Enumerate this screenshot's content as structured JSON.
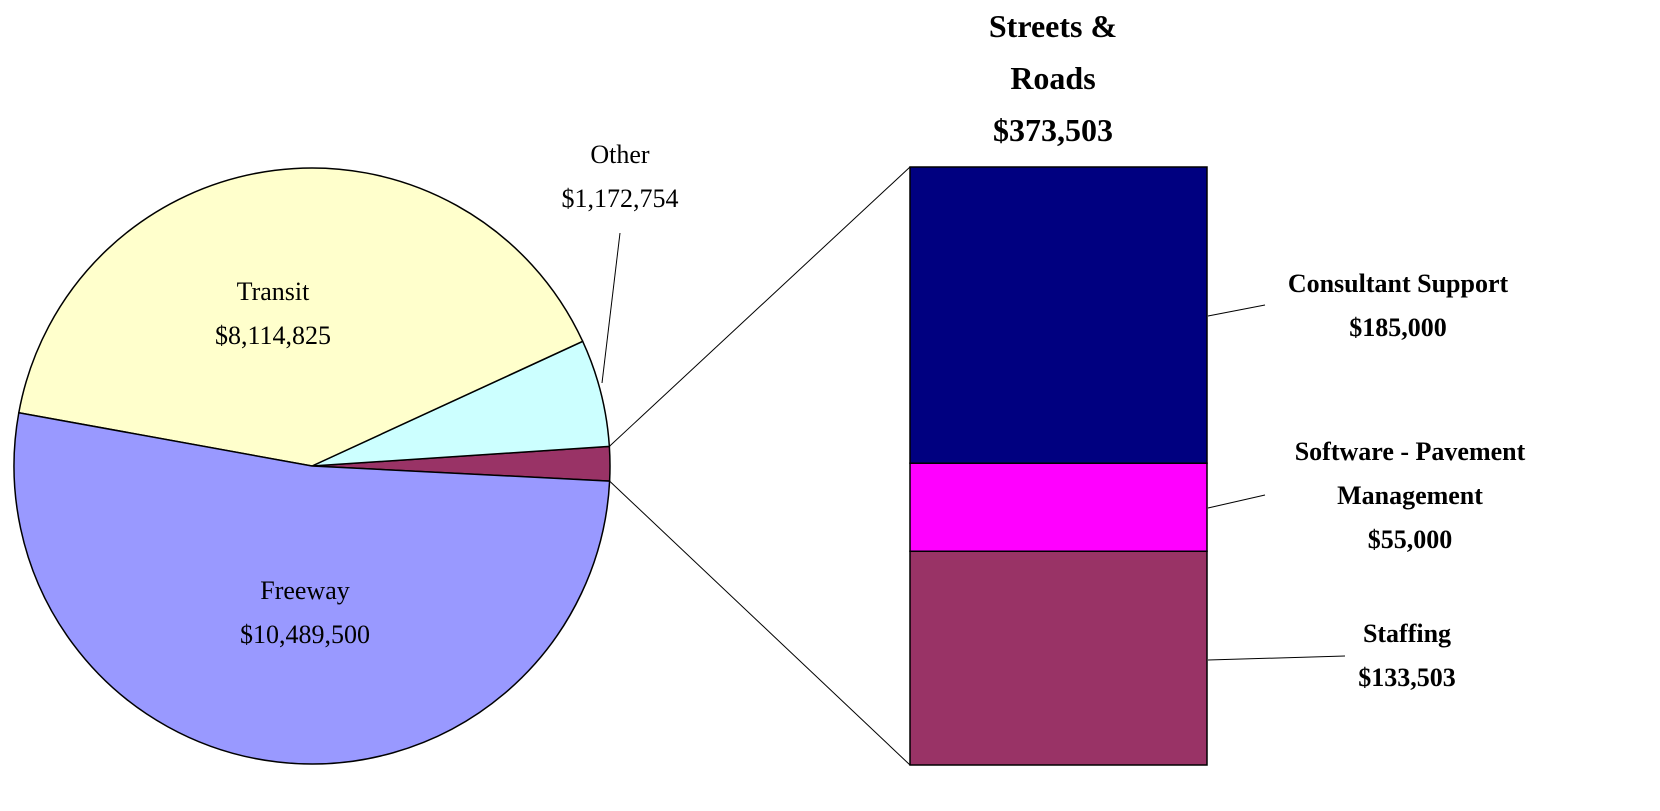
{
  "chart_data": [
    {
      "type": "pie",
      "categories": [
        "Freeway",
        "Transit",
        "Other",
        "Streets & Roads"
      ],
      "values": [
        10489500,
        8114825,
        1172754,
        373503
      ],
      "value_labels": [
        "$10,489,500",
        "$8,114,825",
        "$1,172,754",
        "$373,503"
      ],
      "colors": [
        "#9999ff",
        "#ffffcc",
        "#ccffff",
        "#993366"
      ]
    },
    {
      "type": "stacked_bar",
      "series": [
        {
          "name": "Staffing",
          "color": "#993366",
          "values": [
            133503
          ],
          "value_labels": [
            "$133,503"
          ]
        },
        {
          "name": "Software - Pavement Management",
          "color": "#ff00ff",
          "values": [
            55000
          ],
          "value_labels": [
            "$55,000"
          ]
        },
        {
          "name": "Consultant Support",
          "color": "#000080",
          "values": [
            185000
          ],
          "value_labels": [
            "$185,000"
          ]
        }
      ]
    }
  ]
}
